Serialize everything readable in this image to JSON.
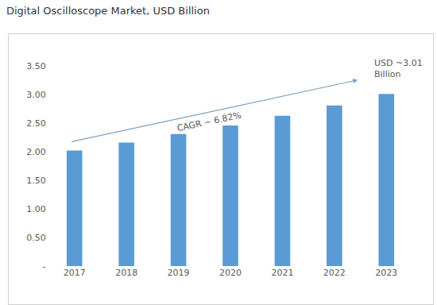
{
  "chart_data": {
    "type": "bar",
    "title": "Digital Oscilloscope Market, USD Billion",
    "categories": [
      "2017",
      "2018",
      "2019",
      "2020",
      "2021",
      "2022",
      "2023"
    ],
    "values": [
      2.02,
      2.16,
      2.31,
      2.46,
      2.63,
      2.81,
      3.01
    ],
    "color": "#5b9bd5",
    "ylim": [
      0,
      3.5
    ],
    "yticks": [
      {
        "value": 0,
        "label": "-"
      },
      {
        "value": 0.5,
        "label": "0.50"
      },
      {
        "value": 1,
        "label": "1.00"
      },
      {
        "value": 1.5,
        "label": "1.50"
      },
      {
        "value": 2,
        "label": "2.00"
      },
      {
        "value": 2.5,
        "label": "2.50"
      },
      {
        "value": 3,
        "label": "3.00"
      },
      {
        "value": 3.5,
        "label": "3.50"
      }
    ],
    "grid": false,
    "annotations": [
      {
        "lines": [
          "CAGR ~ 6.82%"
        ]
      },
      {
        "lines": [
          "USD ~3.01",
          "Billion"
        ]
      }
    ]
  }
}
